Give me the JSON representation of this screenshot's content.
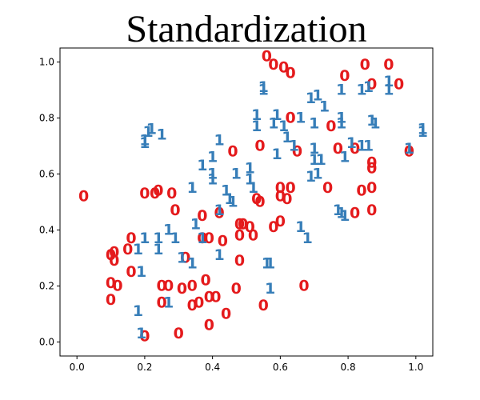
{
  "chart_data": {
    "type": "scatter",
    "title": "Standardization",
    "xlabel": "",
    "ylabel": "",
    "xlim": [
      -0.05,
      1.05
    ],
    "ylim": [
      -0.05,
      1.05
    ],
    "xticks": [
      "0.0",
      "0.2",
      "0.4",
      "0.6",
      "0.8",
      "1.0"
    ],
    "yticks": [
      "0.0",
      "0.2",
      "0.4",
      "0.6",
      "0.8",
      "1.0"
    ],
    "grid": false,
    "legend": "none",
    "colors": {
      "0": "#e41a1c",
      "1": "#377eb8"
    },
    "points": [
      {
        "x": 0.56,
        "y": 1.02,
        "label": "0"
      },
      {
        "x": 0.58,
        "y": 0.99,
        "label": "0"
      },
      {
        "x": 0.61,
        "y": 0.98,
        "label": "0"
      },
      {
        "x": 0.63,
        "y": 0.96,
        "label": "0"
      },
      {
        "x": 0.79,
        "y": 0.95,
        "label": "0"
      },
      {
        "x": 0.85,
        "y": 0.99,
        "label": "0"
      },
      {
        "x": 0.92,
        "y": 0.99,
        "label": "0"
      },
      {
        "x": 0.87,
        "y": 0.92,
        "label": "0"
      },
      {
        "x": 0.95,
        "y": 0.92,
        "label": "0"
      },
      {
        "x": 0.63,
        "y": 0.8,
        "label": "0"
      },
      {
        "x": 0.75,
        "y": 0.77,
        "label": "0"
      },
      {
        "x": 0.54,
        "y": 0.7,
        "label": "0"
      },
      {
        "x": 0.46,
        "y": 0.68,
        "label": "0"
      },
      {
        "x": 0.65,
        "y": 0.68,
        "label": "0"
      },
      {
        "x": 0.77,
        "y": 0.69,
        "label": "0"
      },
      {
        "x": 0.82,
        "y": 0.69,
        "label": "0"
      },
      {
        "x": 0.87,
        "y": 0.64,
        "label": "0"
      },
      {
        "x": 0.87,
        "y": 0.62,
        "label": "0"
      },
      {
        "x": 0.98,
        "y": 0.68,
        "label": "0"
      },
      {
        "x": 0.02,
        "y": 0.52,
        "label": "0"
      },
      {
        "x": 0.2,
        "y": 0.53,
        "label": "0"
      },
      {
        "x": 0.23,
        "y": 0.53,
        "label": "0"
      },
      {
        "x": 0.24,
        "y": 0.54,
        "label": "0"
      },
      {
        "x": 0.28,
        "y": 0.53,
        "label": "0"
      },
      {
        "x": 0.29,
        "y": 0.47,
        "label": "0"
      },
      {
        "x": 0.53,
        "y": 0.51,
        "label": "0"
      },
      {
        "x": 0.54,
        "y": 0.5,
        "label": "0"
      },
      {
        "x": 0.6,
        "y": 0.55,
        "label": "0"
      },
      {
        "x": 0.6,
        "y": 0.52,
        "label": "0"
      },
      {
        "x": 0.62,
        "y": 0.51,
        "label": "0"
      },
      {
        "x": 0.63,
        "y": 0.55,
        "label": "0"
      },
      {
        "x": 0.74,
        "y": 0.55,
        "label": "0"
      },
      {
        "x": 0.84,
        "y": 0.54,
        "label": "0"
      },
      {
        "x": 0.87,
        "y": 0.55,
        "label": "0"
      },
      {
        "x": 0.82,
        "y": 0.46,
        "label": "0"
      },
      {
        "x": 0.87,
        "y": 0.47,
        "label": "0"
      },
      {
        "x": 0.37,
        "y": 0.45,
        "label": "0"
      },
      {
        "x": 0.42,
        "y": 0.46,
        "label": "0"
      },
      {
        "x": 0.48,
        "y": 0.42,
        "label": "0"
      },
      {
        "x": 0.49,
        "y": 0.42,
        "label": "0"
      },
      {
        "x": 0.51,
        "y": 0.41,
        "label": "0"
      },
      {
        "x": 0.58,
        "y": 0.41,
        "label": "0"
      },
      {
        "x": 0.6,
        "y": 0.43,
        "label": "0"
      },
      {
        "x": 0.48,
        "y": 0.38,
        "label": "0"
      },
      {
        "x": 0.52,
        "y": 0.38,
        "label": "0"
      },
      {
        "x": 0.37,
        "y": 0.37,
        "label": "0"
      },
      {
        "x": 0.39,
        "y": 0.37,
        "label": "0"
      },
      {
        "x": 0.43,
        "y": 0.36,
        "label": "0"
      },
      {
        "x": 0.16,
        "y": 0.37,
        "label": "0"
      },
      {
        "x": 0.15,
        "y": 0.33,
        "label": "0"
      },
      {
        "x": 0.11,
        "y": 0.32,
        "label": "0"
      },
      {
        "x": 0.1,
        "y": 0.31,
        "label": "0"
      },
      {
        "x": 0.11,
        "y": 0.29,
        "label": "0"
      },
      {
        "x": 0.32,
        "y": 0.3,
        "label": "0"
      },
      {
        "x": 0.48,
        "y": 0.29,
        "label": "0"
      },
      {
        "x": 0.16,
        "y": 0.25,
        "label": "0"
      },
      {
        "x": 0.1,
        "y": 0.21,
        "label": "0"
      },
      {
        "x": 0.12,
        "y": 0.2,
        "label": "0"
      },
      {
        "x": 0.25,
        "y": 0.2,
        "label": "0"
      },
      {
        "x": 0.27,
        "y": 0.2,
        "label": "0"
      },
      {
        "x": 0.31,
        "y": 0.19,
        "label": "0"
      },
      {
        "x": 0.34,
        "y": 0.2,
        "label": "0"
      },
      {
        "x": 0.38,
        "y": 0.22,
        "label": "0"
      },
      {
        "x": 0.47,
        "y": 0.19,
        "label": "0"
      },
      {
        "x": 0.67,
        "y": 0.2,
        "label": "0"
      },
      {
        "x": 0.1,
        "y": 0.15,
        "label": "0"
      },
      {
        "x": 0.25,
        "y": 0.14,
        "label": "0"
      },
      {
        "x": 0.34,
        "y": 0.13,
        "label": "0"
      },
      {
        "x": 0.36,
        "y": 0.14,
        "label": "0"
      },
      {
        "x": 0.39,
        "y": 0.16,
        "label": "0"
      },
      {
        "x": 0.41,
        "y": 0.16,
        "label": "0"
      },
      {
        "x": 0.44,
        "y": 0.1,
        "label": "0"
      },
      {
        "x": 0.55,
        "y": 0.13,
        "label": "0"
      },
      {
        "x": 0.2,
        "y": 0.02,
        "label": "0"
      },
      {
        "x": 0.3,
        "y": 0.03,
        "label": "0"
      },
      {
        "x": 0.39,
        "y": 0.06,
        "label": "0"
      },
      {
        "x": 0.55,
        "y": 0.91,
        "label": "1"
      },
      {
        "x": 0.55,
        "y": 0.9,
        "label": "1"
      },
      {
        "x": 0.69,
        "y": 0.87,
        "label": "1"
      },
      {
        "x": 0.71,
        "y": 0.88,
        "label": "1"
      },
      {
        "x": 0.73,
        "y": 0.84,
        "label": "1"
      },
      {
        "x": 0.78,
        "y": 0.9,
        "label": "1"
      },
      {
        "x": 0.84,
        "y": 0.9,
        "label": "1"
      },
      {
        "x": 0.86,
        "y": 0.91,
        "label": "1"
      },
      {
        "x": 0.92,
        "y": 0.93,
        "label": "1"
      },
      {
        "x": 0.92,
        "y": 0.9,
        "label": "1"
      },
      {
        "x": 0.53,
        "y": 0.81,
        "label": "1"
      },
      {
        "x": 0.53,
        "y": 0.77,
        "label": "1"
      },
      {
        "x": 0.58,
        "y": 0.78,
        "label": "1"
      },
      {
        "x": 0.59,
        "y": 0.81,
        "label": "1"
      },
      {
        "x": 0.61,
        "y": 0.77,
        "label": "1"
      },
      {
        "x": 0.66,
        "y": 0.8,
        "label": "1"
      },
      {
        "x": 0.7,
        "y": 0.78,
        "label": "1"
      },
      {
        "x": 0.78,
        "y": 0.8,
        "label": "1"
      },
      {
        "x": 0.78,
        "y": 0.78,
        "label": "1"
      },
      {
        "x": 0.87,
        "y": 0.79,
        "label": "1"
      },
      {
        "x": 0.88,
        "y": 0.78,
        "label": "1"
      },
      {
        "x": 1.02,
        "y": 0.76,
        "label": "1"
      },
      {
        "x": 1.02,
        "y": 0.75,
        "label": "1"
      },
      {
        "x": 0.21,
        "y": 0.75,
        "label": "1"
      },
      {
        "x": 0.22,
        "y": 0.76,
        "label": "1"
      },
      {
        "x": 0.25,
        "y": 0.74,
        "label": "1"
      },
      {
        "x": 0.2,
        "y": 0.71,
        "label": "1"
      },
      {
        "x": 0.2,
        "y": 0.72,
        "label": "1"
      },
      {
        "x": 0.42,
        "y": 0.72,
        "label": "1"
      },
      {
        "x": 0.62,
        "y": 0.73,
        "label": "1"
      },
      {
        "x": 0.64,
        "y": 0.7,
        "label": "1"
      },
      {
        "x": 0.7,
        "y": 0.69,
        "label": "1"
      },
      {
        "x": 0.81,
        "y": 0.71,
        "label": "1"
      },
      {
        "x": 0.84,
        "y": 0.7,
        "label": "1"
      },
      {
        "x": 0.86,
        "y": 0.7,
        "label": "1"
      },
      {
        "x": 0.98,
        "y": 0.69,
        "label": "1"
      },
      {
        "x": 0.59,
        "y": 0.67,
        "label": "1"
      },
      {
        "x": 0.7,
        "y": 0.65,
        "label": "1"
      },
      {
        "x": 0.72,
        "y": 0.65,
        "label": "1"
      },
      {
        "x": 0.79,
        "y": 0.66,
        "label": "1"
      },
      {
        "x": 0.4,
        "y": 0.66,
        "label": "1"
      },
      {
        "x": 0.37,
        "y": 0.63,
        "label": "1"
      },
      {
        "x": 0.4,
        "y": 0.6,
        "label": "1"
      },
      {
        "x": 0.4,
        "y": 0.58,
        "label": "1"
      },
      {
        "x": 0.47,
        "y": 0.6,
        "label": "1"
      },
      {
        "x": 0.51,
        "y": 0.62,
        "label": "1"
      },
      {
        "x": 0.51,
        "y": 0.58,
        "label": "1"
      },
      {
        "x": 0.69,
        "y": 0.59,
        "label": "1"
      },
      {
        "x": 0.71,
        "y": 0.6,
        "label": "1"
      },
      {
        "x": 0.34,
        "y": 0.55,
        "label": "1"
      },
      {
        "x": 0.44,
        "y": 0.54,
        "label": "1"
      },
      {
        "x": 0.45,
        "y": 0.51,
        "label": "1"
      },
      {
        "x": 0.46,
        "y": 0.5,
        "label": "1"
      },
      {
        "x": 0.52,
        "y": 0.55,
        "label": "1"
      },
      {
        "x": 0.42,
        "y": 0.47,
        "label": "1"
      },
      {
        "x": 0.77,
        "y": 0.47,
        "label": "1"
      },
      {
        "x": 0.78,
        "y": 0.46,
        "label": "1"
      },
      {
        "x": 0.79,
        "y": 0.45,
        "label": "1"
      },
      {
        "x": 0.35,
        "y": 0.42,
        "label": "1"
      },
      {
        "x": 0.27,
        "y": 0.4,
        "label": "1"
      },
      {
        "x": 0.2,
        "y": 0.37,
        "label": "1"
      },
      {
        "x": 0.24,
        "y": 0.37,
        "label": "1"
      },
      {
        "x": 0.29,
        "y": 0.37,
        "label": "1"
      },
      {
        "x": 0.37,
        "y": 0.37,
        "label": "1"
      },
      {
        "x": 0.18,
        "y": 0.33,
        "label": "1"
      },
      {
        "x": 0.24,
        "y": 0.33,
        "label": "1"
      },
      {
        "x": 0.66,
        "y": 0.41,
        "label": "1"
      },
      {
        "x": 0.68,
        "y": 0.37,
        "label": "1"
      },
      {
        "x": 0.31,
        "y": 0.3,
        "label": "1"
      },
      {
        "x": 0.42,
        "y": 0.31,
        "label": "1"
      },
      {
        "x": 0.34,
        "y": 0.28,
        "label": "1"
      },
      {
        "x": 0.56,
        "y": 0.28,
        "label": "1"
      },
      {
        "x": 0.57,
        "y": 0.28,
        "label": "1"
      },
      {
        "x": 0.19,
        "y": 0.25,
        "label": "1"
      },
      {
        "x": 0.57,
        "y": 0.19,
        "label": "1"
      },
      {
        "x": 0.27,
        "y": 0.14,
        "label": "1"
      },
      {
        "x": 0.18,
        "y": 0.11,
        "label": "1"
      },
      {
        "x": 0.19,
        "y": 0.03,
        "label": "1"
      }
    ]
  }
}
